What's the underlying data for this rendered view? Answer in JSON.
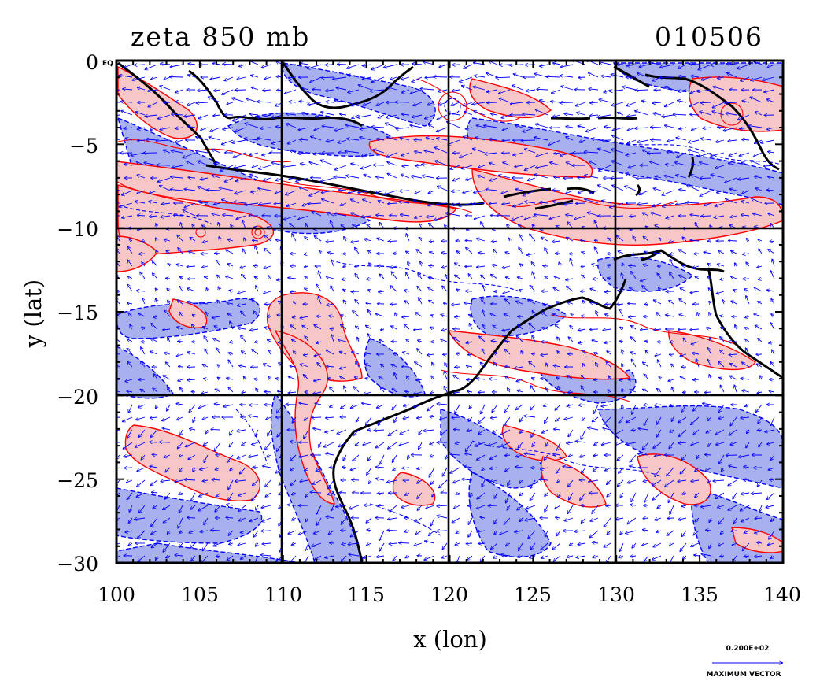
{
  "header": {
    "title": "zeta 850 mb",
    "date_code": "010506"
  },
  "axes": {
    "xlabel": "x (lon)",
    "ylabel": "y (lat)",
    "x_range": [
      100,
      140
    ],
    "y_range": [
      -30,
      0
    ],
    "x_ticks": [
      "100",
      "105",
      "110",
      "115",
      "120",
      "125",
      "130",
      "135",
      "140"
    ],
    "y_ticks": [
      "0",
      "−5",
      "−10",
      "−15",
      "−20",
      "−25",
      "−30"
    ],
    "eq_label": "EQ",
    "grid_lines_lon": [
      110,
      120,
      130
    ],
    "grid_lines_lat": [
      -10,
      -20
    ]
  },
  "legend": {
    "vector_magnitude": "0.200E+02",
    "vector_caption": "MAXIMUM VECTOR"
  },
  "colors": {
    "positive_fill": "#f7c6c6",
    "positive_contour": "#ff0000",
    "negative_fill": "#a9b0ee",
    "negative_contour": "#0000ff",
    "vectors": "#0000ff",
    "coastline": "#000000"
  },
  "map": {
    "projection": "lat-lon",
    "region": "Indonesia / Northern Australia",
    "field": "relative vorticity with wind vectors"
  }
}
